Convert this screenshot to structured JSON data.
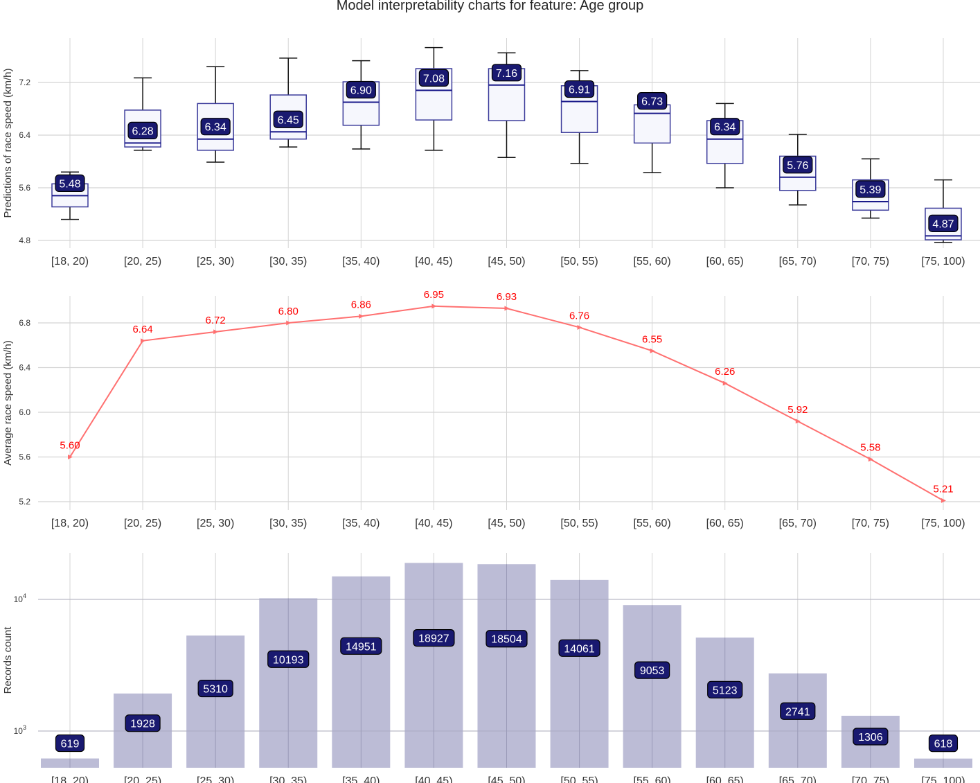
{
  "title": "Model interpretability charts for feature: Age group",
  "colors": {
    "box_edge": "#3a3a9a",
    "box_fill": "#f6f7fd",
    "whisker": "#111111",
    "label_bg": "#191970",
    "line": "#ff7070",
    "line_label": "#ff0000",
    "bar_fill": "#b8b8d4",
    "grid": "#d4d4d4"
  },
  "chart_data": [
    {
      "type": "box",
      "title": "",
      "xlabel": "",
      "ylabel": "Predictions of race speed (km/h)",
      "categories": [
        "[18, 20)",
        "[20, 25)",
        "[25, 30)",
        "[30, 35)",
        "[35, 40)",
        "[40, 45)",
        "[45, 50)",
        "[50, 55)",
        "[55, 60)",
        "[60, 65)",
        "[65, 70)",
        "[70, 75)",
        "[75, 100)"
      ],
      "yticks": [
        4.8,
        5.6,
        6.4,
        7.2
      ],
      "ytick_labels": [
        "4.8",
        "5.6",
        "6.4",
        "7.2"
      ],
      "ylim": [
        4.7,
        7.88
      ],
      "grid": true,
      "boxes": [
        {
          "whislo": 5.12,
          "q1": 5.31,
          "med": 5.48,
          "q3": 5.66,
          "whishi": 5.84
        },
        {
          "whislo": 6.17,
          "q1": 6.22,
          "med": 6.28,
          "q3": 6.78,
          "whishi": 7.27
        },
        {
          "whislo": 5.99,
          "q1": 6.17,
          "med": 6.34,
          "q3": 6.88,
          "whishi": 7.44
        },
        {
          "whislo": 6.22,
          "q1": 6.34,
          "med": 6.45,
          "q3": 7.01,
          "whishi": 7.57
        },
        {
          "whislo": 6.19,
          "q1": 6.55,
          "med": 6.9,
          "q3": 7.21,
          "whishi": 7.53
        },
        {
          "whislo": 6.17,
          "q1": 6.63,
          "med": 7.08,
          "q3": 7.41,
          "whishi": 7.73
        },
        {
          "whislo": 6.06,
          "q1": 6.62,
          "med": 7.16,
          "q3": 7.41,
          "whishi": 7.65
        },
        {
          "whislo": 5.97,
          "q1": 6.44,
          "med": 6.91,
          "q3": 7.15,
          "whishi": 7.38
        },
        {
          "whislo": 5.83,
          "q1": 6.28,
          "med": 6.73,
          "q3": 6.86,
          "whishi": 6.86
        },
        {
          "whislo": 5.6,
          "q1": 5.97,
          "med": 6.34,
          "q3": 6.62,
          "whishi": 6.88
        },
        {
          "whislo": 5.34,
          "q1": 5.56,
          "med": 5.76,
          "q3": 6.08,
          "whishi": 6.41
        },
        {
          "whislo": 5.14,
          "q1": 5.26,
          "med": 5.39,
          "q3": 5.72,
          "whishi": 6.04
        },
        {
          "whislo": 4.77,
          "q1": 4.81,
          "med": 4.87,
          "q3": 5.29,
          "whishi": 5.72
        }
      ],
      "labels": [
        "5.48",
        "6.28",
        "6.34",
        "6.45",
        "6.90",
        "7.08",
        "7.16",
        "6.91",
        "6.73",
        "6.34",
        "5.76",
        "5.39",
        "4.87"
      ]
    },
    {
      "type": "line",
      "title": "",
      "xlabel": "",
      "ylabel": "Average race speed (km/h)",
      "categories": [
        "[18, 20)",
        "[20, 25)",
        "[25, 30)",
        "[30, 35)",
        "[35, 40)",
        "[40, 45)",
        "[45, 50)",
        "[50, 55)",
        "[55, 60)",
        "[60, 65)",
        "[65, 70)",
        "[70, 75)",
        "[75, 100)"
      ],
      "values": [
        5.6,
        6.64,
        6.72,
        6.8,
        6.86,
        6.95,
        6.93,
        6.76,
        6.55,
        6.26,
        5.92,
        5.58,
        5.21
      ],
      "labels": [
        "5.60",
        "6.64",
        "6.72",
        "6.80",
        "6.86",
        "6.95",
        "6.93",
        "6.76",
        "6.55",
        "6.26",
        "5.92",
        "5.58",
        "5.21"
      ],
      "yticks": [
        5.2,
        5.6,
        6.0,
        6.4,
        6.8
      ],
      "ytick_labels": [
        "5.2",
        "5.6",
        "6.0",
        "6.4",
        "6.8"
      ],
      "ylim": [
        5.14,
        7.04
      ],
      "grid": true
    },
    {
      "type": "bar",
      "title": "",
      "xlabel": "",
      "ylabel": "Records count",
      "yscale": "log",
      "categories": [
        "[18, 20)",
        "[20, 25)",
        "[25, 30)",
        "[30, 35)",
        "[35, 40)",
        "[40, 45)",
        "[45, 50)",
        "[50, 55)",
        "[55, 60)",
        "[60, 65)",
        "[65, 70)",
        "[70, 75)",
        "[75, 100)"
      ],
      "values": [
        619,
        1928,
        5310,
        10193,
        14951,
        18927,
        18504,
        14061,
        9053,
        5123,
        2741,
        1306,
        618
      ],
      "labels": [
        "619",
        "1928",
        "5310",
        "10193",
        "14951",
        "18927",
        "18504",
        "14061",
        "9053",
        "5123",
        "2741",
        "1306",
        "618"
      ],
      "yticks": [
        1000,
        10000
      ],
      "ytick_labels": [
        "10",
        "10"
      ],
      "ytick_exponents": [
        "3",
        "4"
      ],
      "ylim": [
        550,
        23000
      ],
      "grid": true
    }
  ]
}
